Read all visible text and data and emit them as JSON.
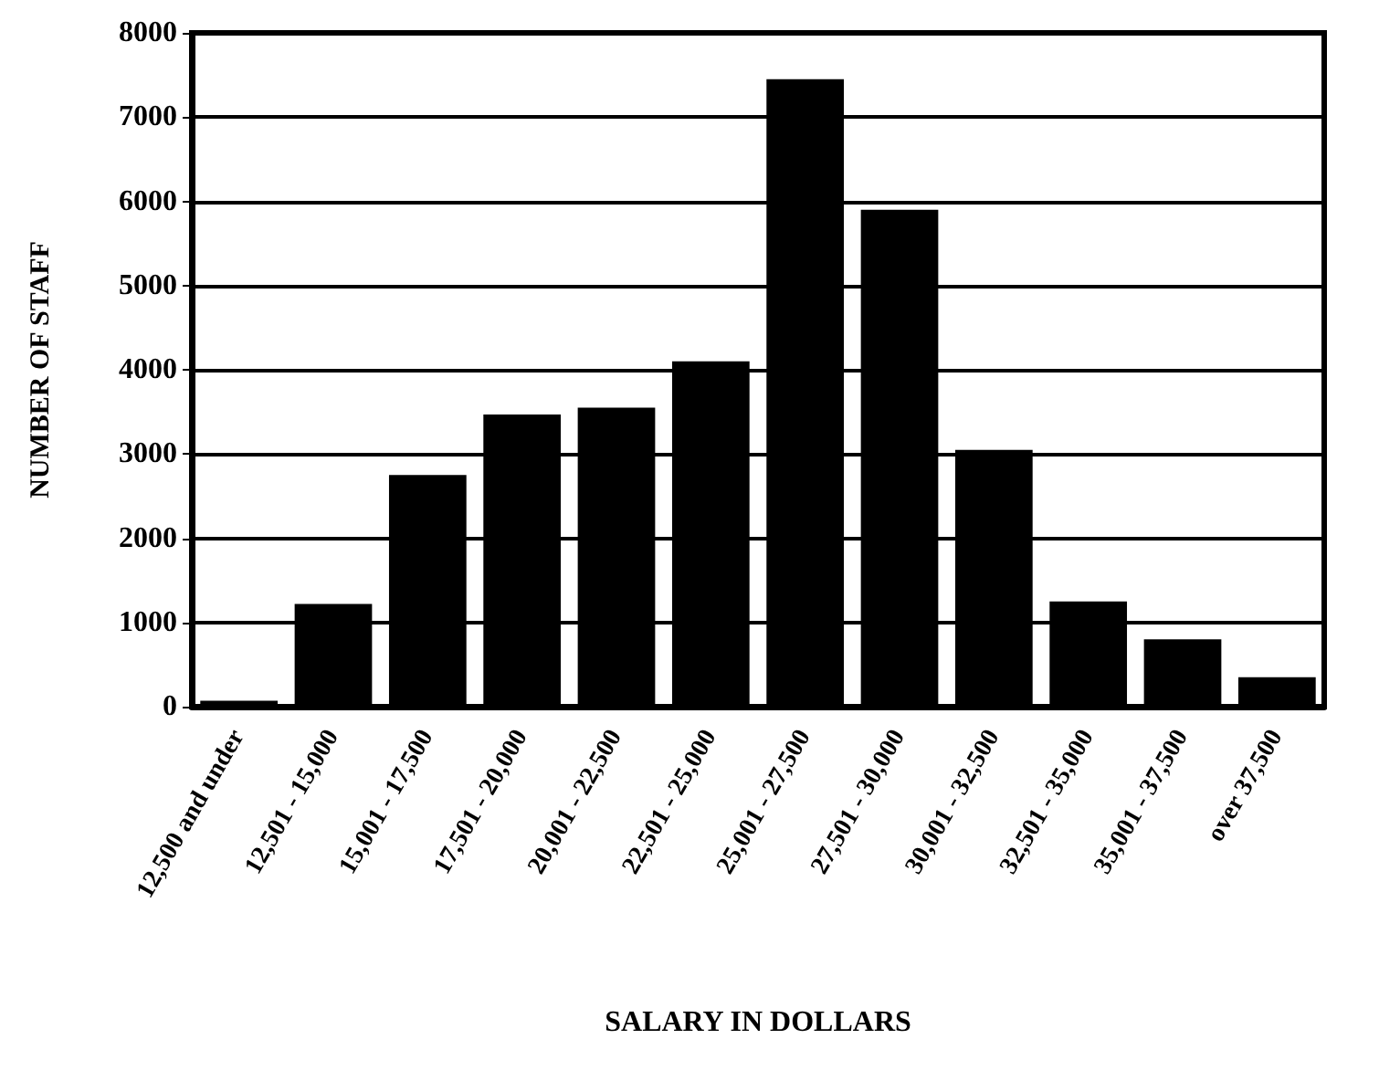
{
  "chart_data": {
    "type": "bar",
    "xlabel": "SALARY IN DOLLARS",
    "ylabel": "NUMBER OF STAFF",
    "categories": [
      "12,500 and under",
      "12,501 - 15,000",
      "15,001 - 17,500",
      "17,501 - 20,000",
      "20,001 - 22,500",
      "22,501 - 25,000",
      "25,001 - 27,500",
      "27,501 - 30,000",
      "30,001 - 32,500",
      "32,501 - 35,000",
      "35,001 - 37,500",
      "over 37,500"
    ],
    "values": [
      70,
      1220,
      2750,
      3470,
      3550,
      4100,
      7450,
      5900,
      3050,
      1250,
      800,
      350
    ],
    "color": "#000000",
    "ylim": [
      0,
      8000
    ],
    "yticks": [
      0,
      1000,
      2000,
      3000,
      4000,
      5000,
      6000,
      7000,
      8000
    ],
    "grid": "y"
  }
}
